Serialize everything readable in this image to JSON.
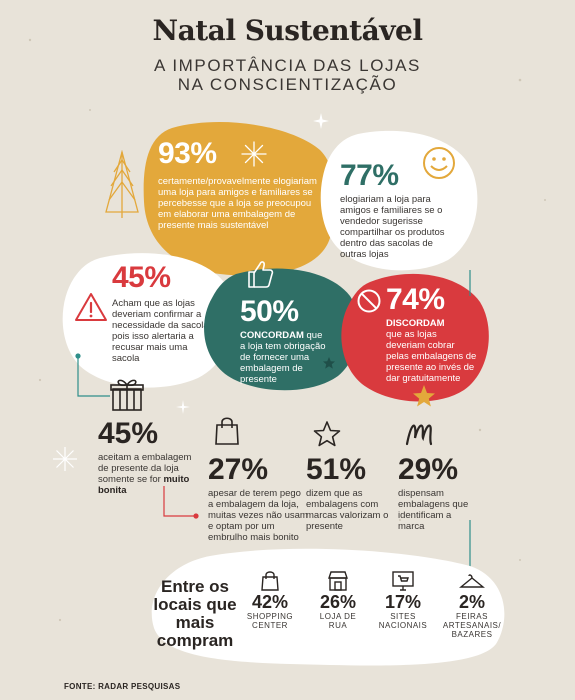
{
  "title": "Natal Sustentável",
  "subtitle_line1": "A IMPORTÂNCIA DAS LOJAS",
  "subtitle_line2": "NA CONSCIENTIZAÇÃO",
  "colors": {
    "mustard": "#e3a83b",
    "red": "#d93a3e",
    "teal": "#2f6f66",
    "green": "#3f8d70",
    "white": "#ffffff",
    "background": "#e8e3d9",
    "text": "#2a2522"
  },
  "stats": {
    "s93": {
      "value": "93%",
      "text": "certamente/provavelmente elogiariam uma loja para amigos e familiares se percebesse que a loja se preocupou em elaborar uma embalagem de presente mais sustentável"
    },
    "s77": {
      "value": "77%",
      "text": "elogiariam a loja para amigos e familiares se o vendedor sugerisse compartilhar os produtos dentro das sacolas de outras lojas"
    },
    "s45a": {
      "value": "45%",
      "text": "Acham que as lojas deveriam confirmar a necessidade da sacola, pois isso alertaria a recusar mais uma sacola"
    },
    "s50": {
      "value": "50%",
      "label": "CONCORDAM",
      "text": "que a loja tem obrigação de fornecer uma embalagem de presente"
    },
    "s74": {
      "value": "74%",
      "label": "DISCORDAM",
      "text": "que as lojas deveriam cobrar pelas embalagens de presente ao invés de dar gratuitamente"
    },
    "s45b": {
      "value": "45%",
      "text": "aceitam a embalagem de presente da loja somente se for",
      "bold": "muito bonita"
    },
    "s27": {
      "value": "27%",
      "text": "apesar de terem pego a embalagem da loja, muitas vezes não usam e optam por um embrulho mais bonito"
    },
    "s51": {
      "value": "51%",
      "text": "dizem que as embalagens com marcas valorizam o presente"
    },
    "s29": {
      "value": "29%",
      "text": "dispensam embalagens que identificam a marca"
    }
  },
  "locations": {
    "heading": "Entre os locais que mais compram",
    "items": [
      {
        "value": "42%",
        "label": "SHOPPING CENTER",
        "icon": "shopping-bag-icon"
      },
      {
        "value": "26%",
        "label": "LOJA DE RUA",
        "icon": "storefront-icon"
      },
      {
        "value": "17%",
        "label": "SITES NACIONAIS",
        "icon": "computer-cart-icon"
      },
      {
        "value": "2%",
        "label": "FEIRAS ARTESANAIS/ BAZARES",
        "icon": "hanger-icon"
      }
    ]
  },
  "source": "FONTE: RADAR PESQUISAS"
}
